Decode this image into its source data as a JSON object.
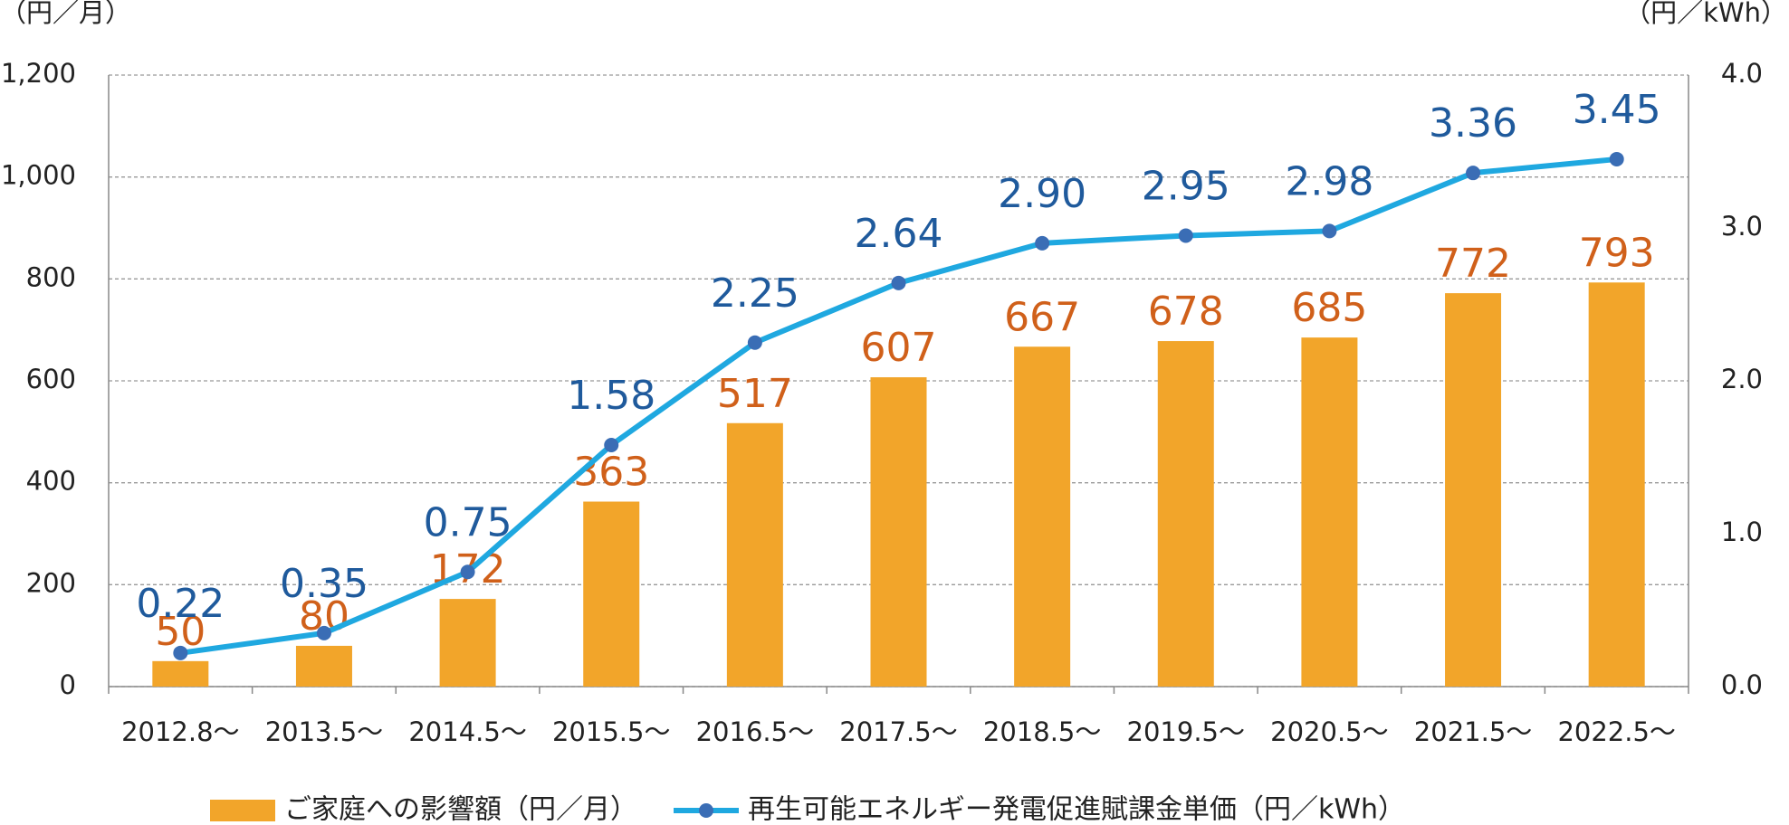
{
  "chart_data": {
    "type": "bar",
    "y_label": "（円／月）",
    "y2_label": "（円／kWh）",
    "categories": [
      "2012.8～",
      "2013.5～",
      "2014.5～",
      "2015.5～",
      "2016.5～",
      "2017.5～",
      "2018.5～",
      "2019.5～",
      "2020.5～",
      "2021.5～",
      "2022.5～"
    ],
    "series": [
      {
        "name": "ご家庭への影響額（円／月）",
        "type": "bar",
        "color": "#f2a52a",
        "label_color": "#d0601a",
        "values": [
          50,
          80,
          172,
          363,
          517,
          607,
          667,
          678,
          685,
          772,
          793
        ]
      },
      {
        "name": "再生可能エネルギー発電促進賦課金単価（円／kWh）",
        "type": "line",
        "axis": "y2",
        "color": "#1fa8e0",
        "marker_color": "#3a6db5",
        "label_color": "#1f5a9c",
        "values": [
          0.22,
          0.35,
          0.75,
          1.58,
          2.25,
          2.64,
          2.9,
          2.95,
          2.98,
          3.36,
          3.45
        ],
        "value_labels": [
          "0.22",
          "0.35",
          "0.75",
          "1.58",
          "2.25",
          "2.64",
          "2.90",
          "2.95",
          "2.98",
          "3.36",
          "3.45"
        ]
      }
    ],
    "ylim": [
      0,
      1200
    ],
    "yticks": [
      0,
      200,
      400,
      600,
      800,
      {
        "value": 1000,
        "label": "1,000"
      },
      {
        "value": 1200,
        "label": "1,200"
      }
    ],
    "y2lim": [
      0,
      4
    ],
    "y2ticks": [
      {
        "value": 0,
        "label": "0.0"
      },
      {
        "value": 1,
        "label": "1.0"
      },
      {
        "value": 2,
        "label": "2.0"
      },
      {
        "value": 3,
        "label": "3.0"
      },
      {
        "value": 4,
        "label": "4.0"
      }
    ],
    "grid": true
  }
}
